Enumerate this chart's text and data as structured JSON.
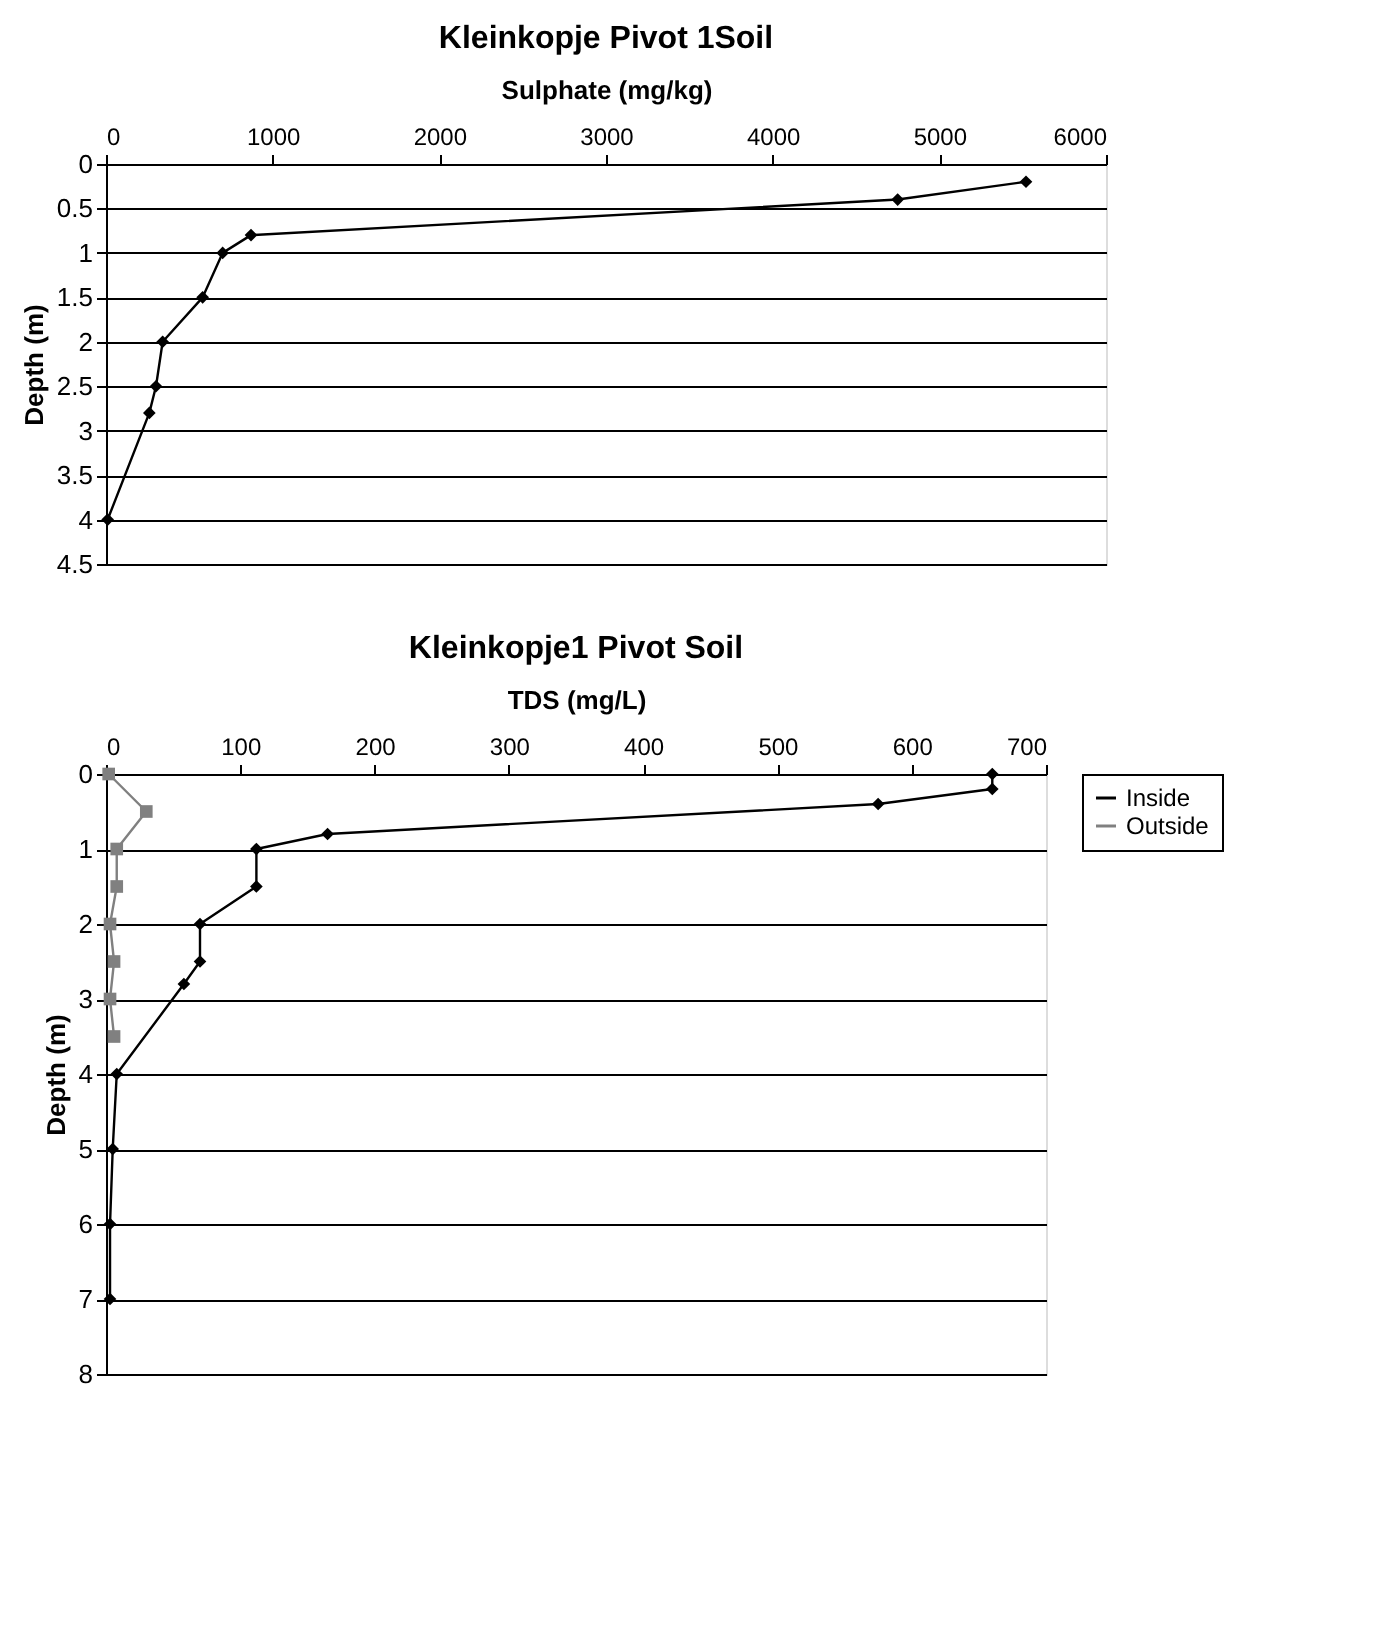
{
  "chart_data": [
    {
      "type": "line",
      "title": "Kleinkopje Pivot 1Soil",
      "xlabel": "Sulphate (mg/kg)",
      "ylabel": "Depth (m)",
      "xlim": [
        0,
        6000
      ],
      "xticks": [
        0,
        1000,
        2000,
        3000,
        4000,
        5000,
        6000
      ],
      "ylim": [
        4.5,
        0
      ],
      "yticks": [
        0,
        0.5,
        1,
        1.5,
        2,
        2.5,
        3,
        3.5,
        4,
        4.5
      ],
      "grid": "y",
      "legend": false,
      "marker": "diamond",
      "line_style": "solid",
      "series": [
        {
          "color": "#000000",
          "x": [
            5520,
            4750,
            870,
            700,
            580,
            340,
            300,
            260,
            10
          ],
          "values": [
            0.2,
            0.4,
            0.8,
            1,
            1.5,
            2,
            2.5,
            2.8,
            4
          ]
        }
      ]
    },
    {
      "type": "line",
      "title": "Kleinkopje1 Pivot Soil",
      "xlabel": "TDS (mg/L)",
      "ylabel": "Depth (m)",
      "xlim": [
        0,
        700
      ],
      "xticks": [
        0,
        100,
        200,
        300,
        400,
        500,
        600,
        700
      ],
      "ylim": [
        8,
        0
      ],
      "yticks": [
        0,
        1,
        2,
        3,
        4,
        5,
        6,
        7,
        8
      ],
      "grid": "y",
      "legend": "right",
      "line_style": "solid",
      "series": [
        {
          "name": "Inside",
          "color": "#000000",
          "marker": "diamond",
          "x": [
            660,
            660,
            575,
            165,
            112,
            112,
            70,
            70,
            58,
            8,
            5,
            3,
            3
          ],
          "values": [
            0,
            0.2,
            0.4,
            0.8,
            1,
            1.5,
            2,
            2.5,
            2.8,
            4,
            5,
            6,
            7
          ]
        },
        {
          "name": "Outside",
          "color": "#808080",
          "marker": "square",
          "x": [
            2,
            30,
            8,
            8,
            3,
            6,
            3,
            6
          ],
          "values": [
            0,
            0.5,
            1,
            1.5,
            2,
            2.5,
            3,
            3.5
          ]
        }
      ]
    }
  ]
}
